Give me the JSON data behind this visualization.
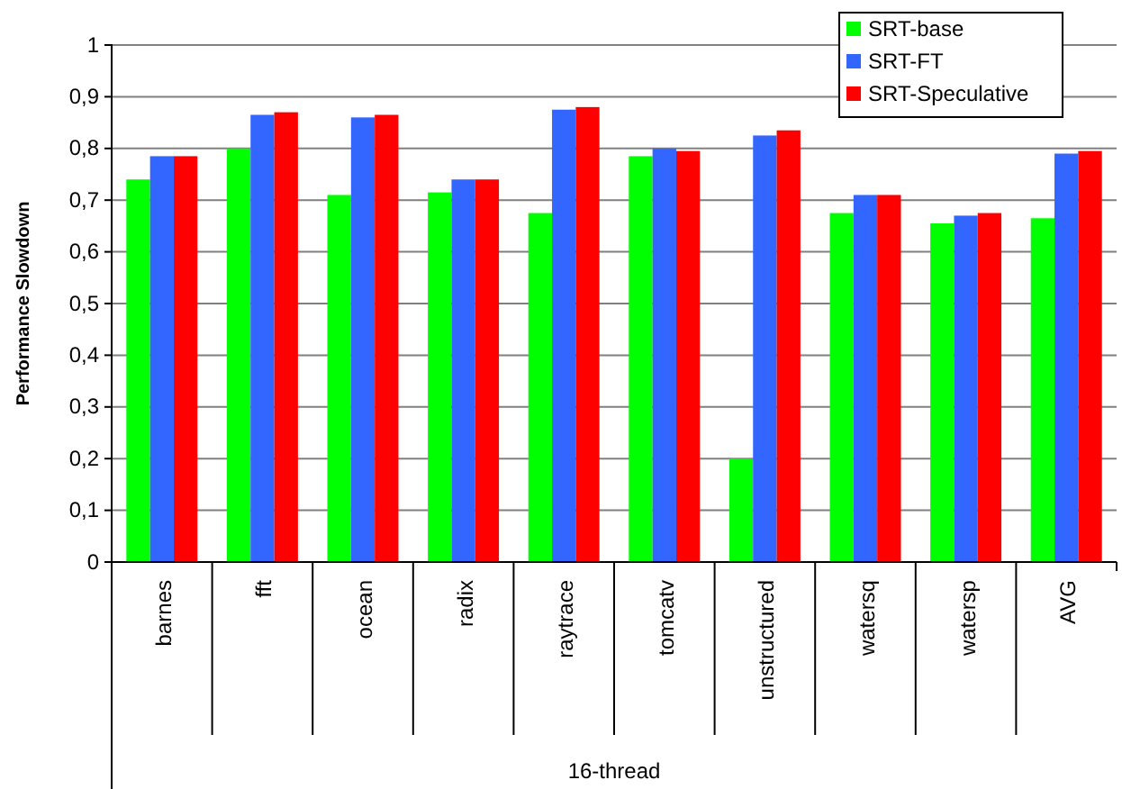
{
  "chart_data": {
    "type": "bar",
    "ylabel": "Performance Slowdown",
    "xlabel": "16-thread",
    "categories": [
      "barnes",
      "fft",
      "ocean",
      "radix",
      "raytrace",
      "tomcatv",
      "unstructured",
      "watersq",
      "watersp",
      "AVG"
    ],
    "series": [
      {
        "name": "SRT-base",
        "color": "#00ff00",
        "values": [
          0.74,
          0.8,
          0.71,
          0.715,
          0.675,
          0.785,
          0.2,
          0.675,
          0.655,
          0.665
        ]
      },
      {
        "name": "SRT-FT",
        "color": "#3366ff",
        "values": [
          0.785,
          0.865,
          0.86,
          0.74,
          0.875,
          0.8,
          0.825,
          0.71,
          0.67,
          0.79
        ]
      },
      {
        "name": "SRT-Speculative",
        "color": "#ff0000",
        "values": [
          0.785,
          0.87,
          0.865,
          0.74,
          0.88,
          0.795,
          0.835,
          0.71,
          0.675,
          0.795
        ]
      }
    ],
    "ylim": [
      0,
      1
    ],
    "yticks": [
      0,
      {
        "value": 0.1,
        "label": "0,1"
      },
      {
        "value": 0.2,
        "label": "0,2"
      },
      {
        "value": 0.3,
        "label": "0,3"
      },
      {
        "value": 0.4,
        "label": "0,4"
      },
      {
        "value": 0.5,
        "label": "0,5"
      },
      {
        "value": 0.6,
        "label": "0,6"
      },
      {
        "value": 0.7,
        "label": "0,7"
      },
      {
        "value": 0.8,
        "label": "0,8"
      },
      {
        "value": 0.9,
        "label": "0,9"
      },
      1
    ],
    "grid": "y",
    "legend": "top right"
  }
}
